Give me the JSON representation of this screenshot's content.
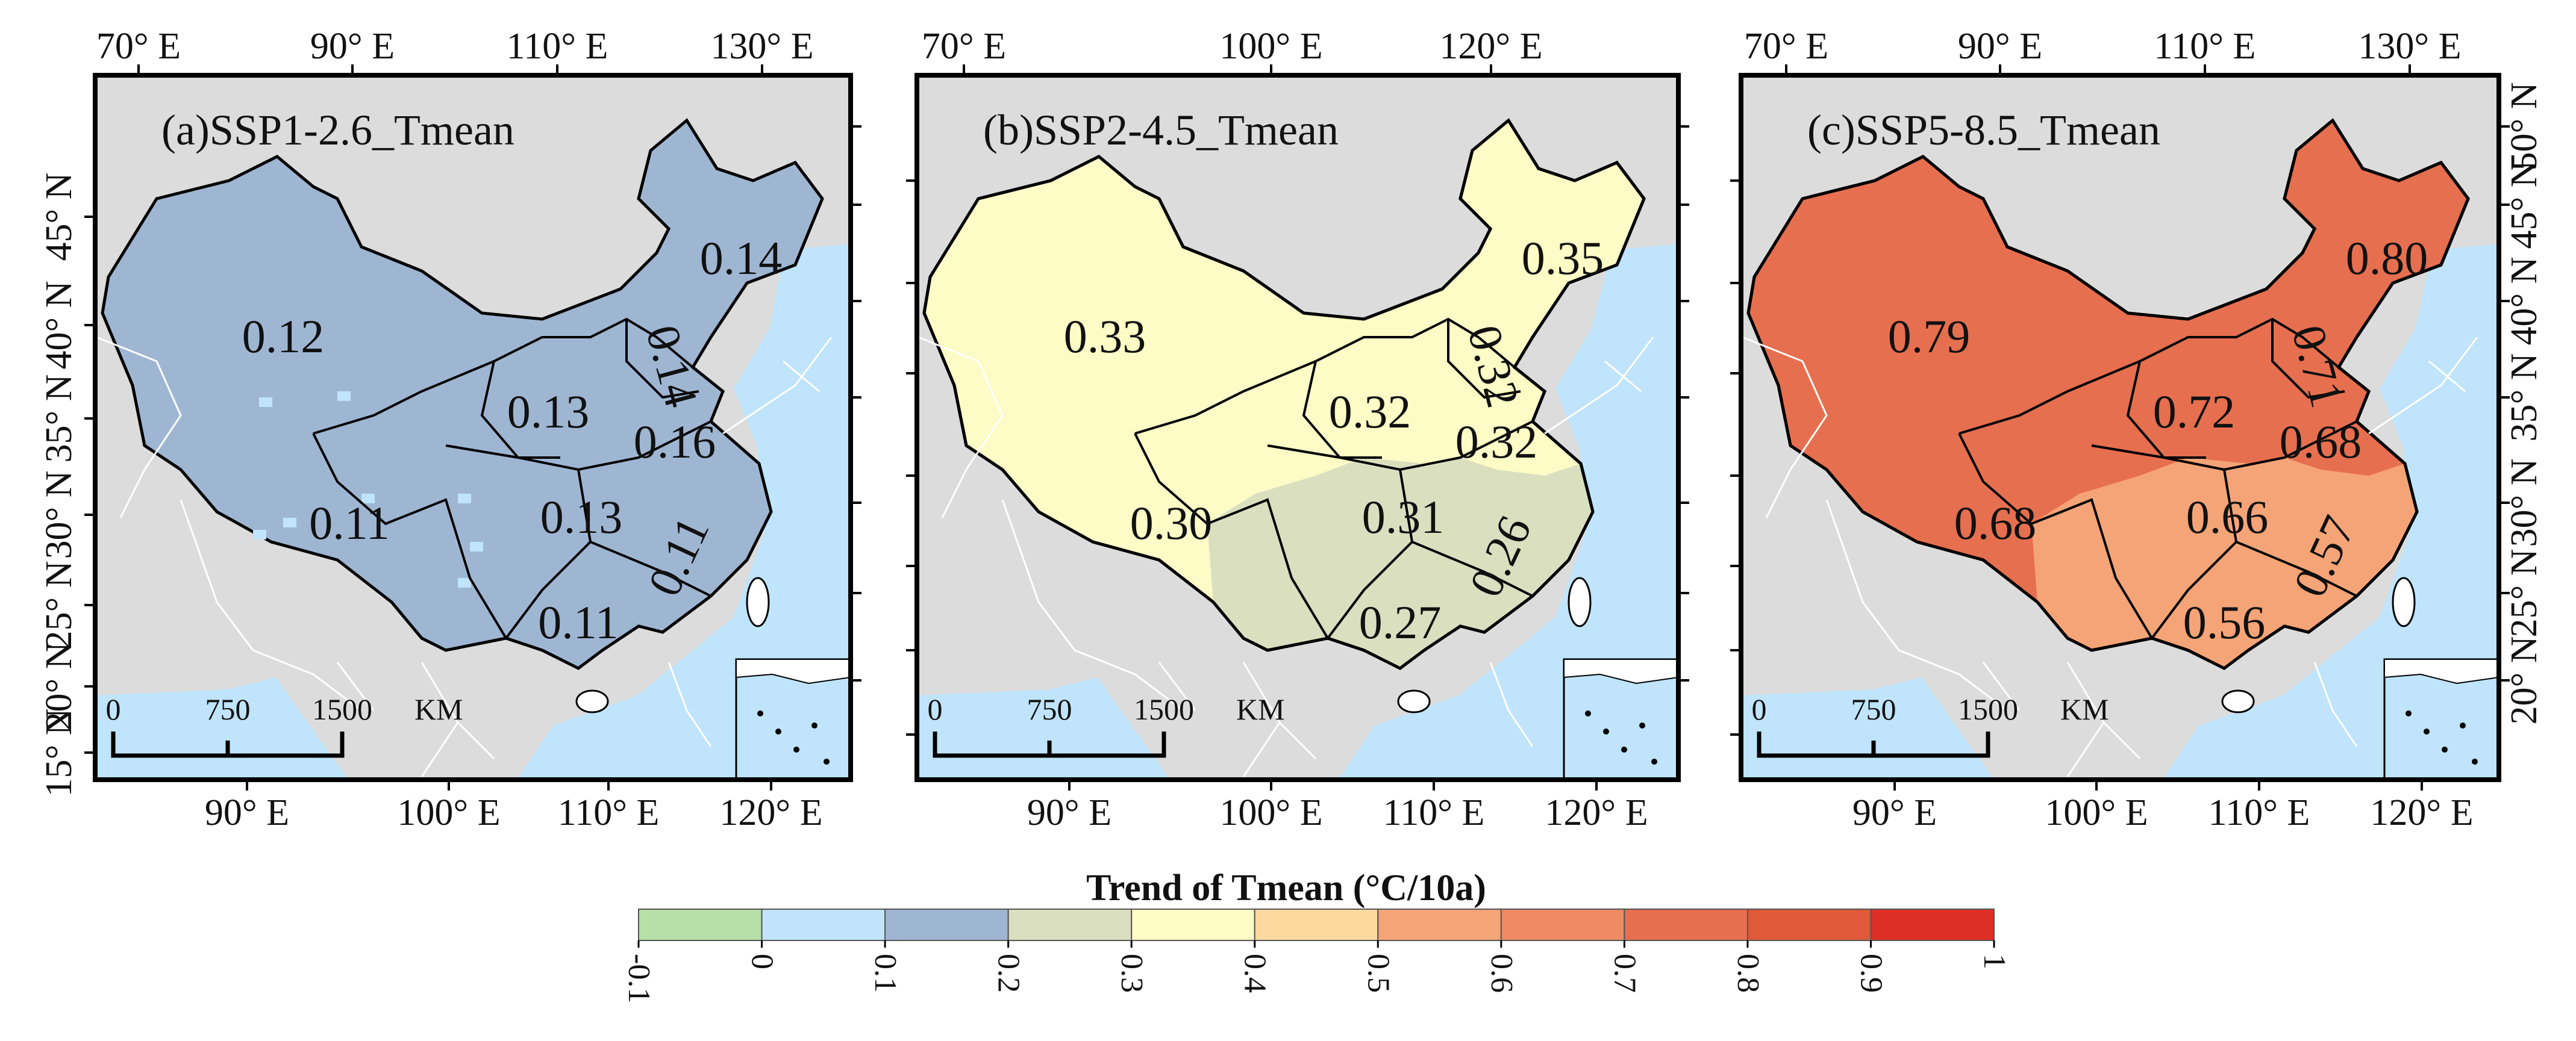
{
  "maps": [
    {
      "title": "(a)SSP1-2.6_Tmean",
      "fill": "#9fb6d3",
      "labels": [
        "0.12",
        "0.14",
        "0.14",
        "0.13",
        "0.16",
        "0.11",
        "0.13",
        "0.11",
        "0.11"
      ],
      "top_ticks": [
        "70° E",
        "90° E",
        "110° E",
        "130° E"
      ],
      "bottom_ticks": [
        "90° E",
        "100° E",
        "110° E",
        "120° E"
      ],
      "left_ticks": [
        "45° N",
        "40° N",
        "35° N",
        "30° N",
        "25° N",
        "20° N",
        "15° N"
      ],
      "right_ticks": []
    },
    {
      "title": "(b)SSP2-4.5_Tmean",
      "fill": "#fdfbc6",
      "south_fill": "#dadfc0",
      "labels": [
        "0.33",
        "0.35",
        "0.32",
        "0.32",
        "0.32",
        "0.30",
        "0.31",
        "0.26",
        "0.27"
      ],
      "top_ticks": [
        "70° E",
        "100° E",
        "120° E"
      ],
      "bottom_ticks": [
        "90° E",
        "100° E",
        "110° E",
        "120° E"
      ],
      "left_ticks": [],
      "right_ticks": []
    },
    {
      "title": "(c)SSP5-8.5_Tmean",
      "fill": "#e66f50",
      "south_fill": "#f5a477",
      "labels": [
        "0.79",
        "0.80",
        "0.71",
        "0.72",
        "0.68",
        "0.68",
        "0.66",
        "0.57",
        "0.56"
      ],
      "top_ticks": [
        "70° E",
        "90° E",
        "110° E",
        "130° E"
      ],
      "bottom_ticks": [
        "90° E",
        "100° E",
        "110° E",
        "120° E"
      ],
      "left_ticks": [],
      "right_ticks": [
        "50° N",
        "45° N",
        "40° N",
        "35° N",
        "30° N",
        "25° N",
        "20° N"
      ]
    }
  ],
  "scale_bar": [
    "0",
    "750",
    "1500",
    "KM"
  ],
  "legend": {
    "title": "Trend  of  Tmean (°C/10a)",
    "ticks": [
      "-0.1",
      "0",
      "0.1",
      "0.2",
      "0.3",
      "0.4",
      "0.5",
      "0.6",
      "0.7",
      "0.8",
      "0.9",
      "1"
    ],
    "colors": [
      "#b5e0a8",
      "#bfe4fb",
      "#9fb6d3",
      "#dadfc0",
      "#fdfbc6",
      "#fdd9a0",
      "#f5a477",
      "#ee8b64",
      "#e66f50",
      "#e05a3a",
      "#dc2f26"
    ]
  }
}
